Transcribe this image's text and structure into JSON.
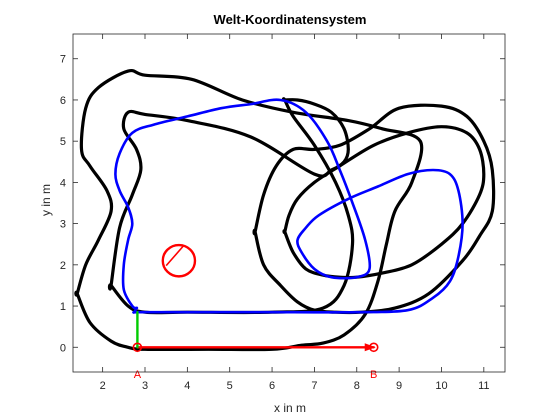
{
  "chart_data": {
    "type": "line",
    "title": "Welt-Koordinatensystem",
    "xlabel": "x in m",
    "ylabel": "y in m",
    "xlim": [
      1.3,
      11.5
    ],
    "ylim": [
      -0.6,
      7.6
    ],
    "xticks": [
      2,
      3,
      4,
      5,
      6,
      7,
      8,
      9,
      10,
      11
    ],
    "yticks": [
      0,
      1,
      2,
      3,
      4,
      5,
      6,
      7
    ],
    "grid": false,
    "colors": {
      "axes": "#262626",
      "outer_track": "#000000",
      "inner_track": "#000000",
      "path": "#0000ff",
      "axis_x": "#ff0000",
      "axis_y": "#00cc00",
      "circle": "#ff0000",
      "points": "#ff0000"
    },
    "series": [
      {
        "x": [
          1.4,
          1.7,
          2.2,
          2.6,
          3.0,
          4.5,
          6.0,
          6.7,
          7.2,
          7.7,
          8.2,
          8.5,
          8.7,
          8.9,
          9.3,
          9.5,
          8.6,
          7.8,
          6.5,
          5.3,
          4.1,
          3.0,
          2.6,
          1.9,
          1.6,
          1.5,
          1.7,
          2.1,
          2.2,
          1.9,
          1.6,
          1.4
        ],
        "y": [
          1.3,
          0.6,
          0.15,
          0.0,
          -0.05,
          -0.05,
          -0.05,
          0.05,
          0.1,
          0.3,
          0.8,
          1.6,
          2.5,
          3.3,
          4.0,
          5.0,
          5.3,
          5.5,
          5.7,
          6.0,
          6.5,
          6.6,
          6.7,
          6.3,
          5.8,
          4.8,
          4.4,
          3.8,
          3.3,
          2.6,
          2.0,
          1.3
        ]
      },
      {
        "x": [
          2.2,
          2.6,
          3.0,
          4.0,
          6.0,
          7.2,
          7.7,
          7.9,
          7.8,
          7.5,
          7.0,
          6.5,
          6.3,
          6.3,
          6.6,
          7.0,
          7.4,
          7.7,
          7.8,
          7.7,
          7.4,
          7.0,
          5.5,
          4.0,
          3.0,
          2.6,
          2.5,
          2.8,
          2.9,
          2.7,
          2.4,
          2.2
        ],
        "y": [
          1.5,
          1.0,
          0.85,
          0.85,
          0.85,
          0.95,
          1.5,
          2.5,
          3.2,
          4.0,
          4.9,
          5.6,
          6.0,
          6.0,
          6.0,
          5.9,
          5.7,
          5.3,
          4.8,
          4.5,
          4.3,
          4.2,
          5.1,
          5.5,
          5.65,
          5.7,
          5.3,
          4.8,
          4.3,
          3.7,
          2.9,
          1.5
        ]
      },
      {
        "x": [
          5.6,
          5.8,
          6.2,
          6.6,
          7.0,
          7.5,
          8.1,
          8.9,
          9.7,
          10.5,
          10.9,
          11.2,
          11.2,
          11.0,
          10.6,
          10.0,
          9.0,
          8.3,
          7.6,
          7.0,
          6.5,
          6.1,
          5.8,
          5.6
        ],
        "y": [
          2.8,
          2.0,
          1.5,
          1.1,
          0.9,
          0.85,
          0.85,
          0.95,
          1.3,
          2.1,
          2.7,
          3.3,
          4.3,
          5.0,
          5.6,
          5.85,
          5.8,
          5.3,
          4.9,
          4.8,
          4.8,
          4.4,
          3.7,
          2.8
        ]
      },
      {
        "x": [
          6.3,
          6.5,
          6.8,
          7.2,
          7.6,
          8.0,
          8.6,
          9.3,
          10.0,
          10.5,
          10.9,
          11.0,
          10.9,
          10.6,
          10.0,
          9.2,
          8.4,
          7.6,
          7.0,
          6.6,
          6.4,
          6.3
        ],
        "y": [
          2.8,
          2.3,
          1.9,
          1.75,
          1.7,
          1.7,
          1.8,
          2.0,
          2.5,
          3.0,
          3.7,
          4.2,
          4.8,
          5.2,
          5.35,
          5.2,
          4.9,
          4.4,
          4.0,
          3.6,
          3.2,
          2.8
        ]
      },
      {
        "x": [
          2.8,
          2.75,
          2.8,
          3.5,
          5.0,
          6.5,
          8.0,
          9.2,
          9.8,
          10.2,
          10.4,
          10.5,
          10.4,
          10.2,
          9.8,
          9.2,
          8.5,
          7.8,
          7.1,
          6.8,
          6.6,
          6.7,
          7.0,
          7.4,
          8.0,
          8.3,
          8.2,
          7.9,
          7.6,
          7.3,
          6.8,
          6.2,
          5.5,
          4.8,
          4.0,
          3.2,
          2.7,
          2.4,
          2.3,
          2.4,
          2.6,
          2.7,
          2.6,
          2.5,
          2.5,
          2.7,
          2.8
        ],
        "y": [
          0.95,
          0.85,
          0.85,
          0.85,
          0.85,
          0.85,
          0.85,
          0.9,
          1.2,
          1.6,
          2.2,
          3.0,
          3.8,
          4.2,
          4.3,
          4.2,
          3.9,
          3.6,
          3.2,
          2.9,
          2.6,
          2.3,
          1.9,
          1.7,
          1.7,
          1.9,
          2.6,
          3.5,
          4.3,
          5.0,
          5.7,
          6.0,
          5.9,
          5.8,
          5.6,
          5.4,
          5.2,
          4.7,
          4.2,
          3.8,
          3.4,
          3.0,
          2.6,
          2.0,
          1.4,
          1.0,
          0.95
        ]
      },
      {
        "x": [
          2.82,
          3.0,
          4.0,
          5.0,
          6.0,
          7.0,
          8.0,
          8.4
        ],
        "y": [
          0.0,
          0.0,
          0.0,
          0.0,
          0.0,
          0.0,
          0.0,
          0.0
        ]
      },
      {
        "x": [
          2.82,
          2.82
        ],
        "y": [
          0.0,
          0.85
        ]
      }
    ],
    "circle": {
      "center": [
        3.8,
        2.1
      ],
      "radius": 0.38
    },
    "points": [
      {
        "label": "A",
        "x": 2.82,
        "y": 0.0
      },
      {
        "label": "B",
        "x": 8.4,
        "y": 0.0
      }
    ]
  }
}
